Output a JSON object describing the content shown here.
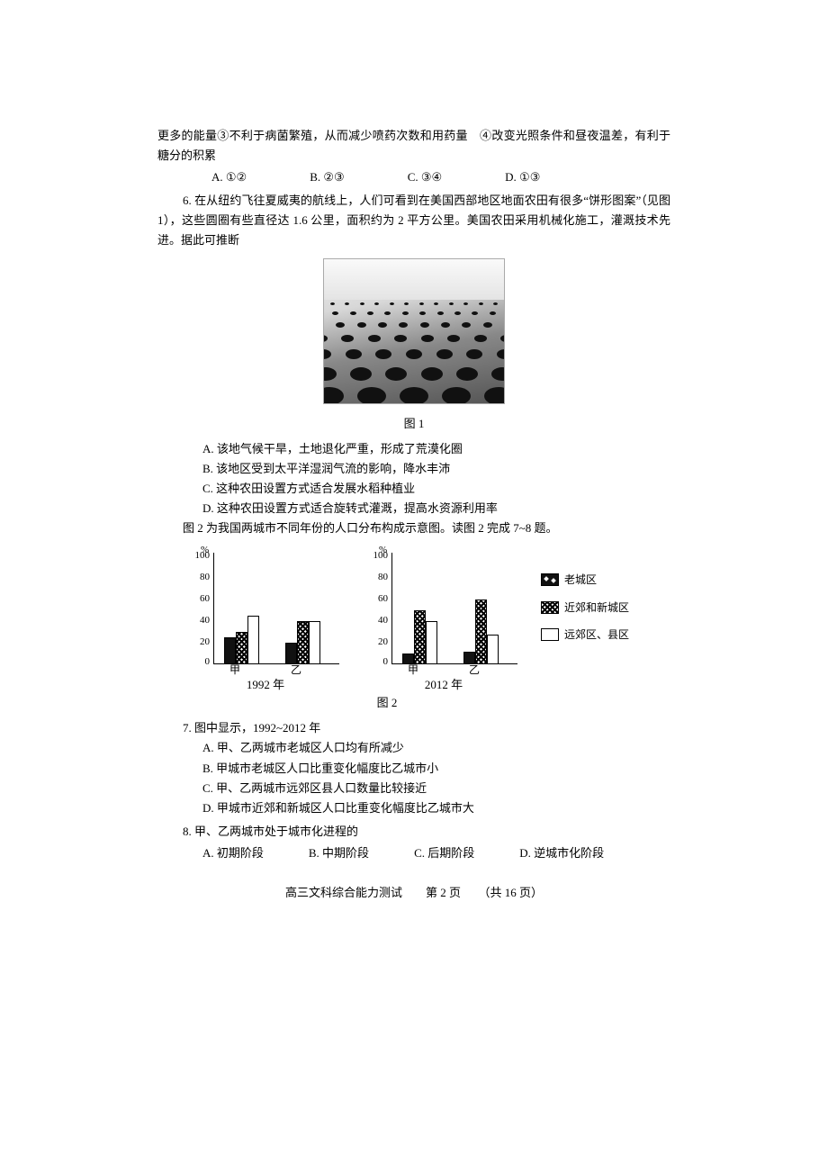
{
  "intro_cont": "更多的能量③不利于病菌繁殖，从而减少喷药次数和用药量　④改变光照条件和昼夜温差，有利于糖分的积累",
  "q5_options": {
    "A": "A. ①②",
    "B": "B. ②③",
    "C": "C. ③④",
    "D": "D. ①③"
  },
  "q6_stem": "6. 在从纽约飞往夏威夷的航线上，人们可看到在美国西部地区地面农田有很多“饼形图案”（见图 1），这些圆圈有些直径达 1.6 公里，面积约为 2 平方公里。美国农田采用机械化施工，灌溉技术先进。据此可推断",
  "fig1_caption": "图 1",
  "q6": {
    "A": "A. 该地气候干旱，土地退化严重，形成了荒漠化圈",
    "B": "B. 该地区受到太平洋湿润气流的影响，降水丰沛",
    "C": "C. 这种农田设置方式适合发展水稻种植业",
    "D": "D. 这种农田设置方式适合旋转式灌溉，提高水资源利用率"
  },
  "fig2_intro": "图 2 为我国两城市不同年份的人口分布构成示意图。读图 2 完成 7~8 题。",
  "fig2": {
    "y_label": "%",
    "ylim": [
      0,
      100
    ],
    "yticks": [
      0,
      20,
      40,
      60,
      80,
      100
    ],
    "categories": [
      "甲",
      "乙"
    ],
    "left_year": "1992 年",
    "right_year": "2012 年",
    "left": {
      "jia": {
        "old": 25,
        "mid": 30,
        "far": 45
      },
      "yi": {
        "old": 20,
        "mid": 40,
        "far": 40
      }
    },
    "right": {
      "jia": {
        "old": 10,
        "mid": 50,
        "far": 40
      },
      "yi": {
        "old": 12,
        "mid": 60,
        "far": 28
      }
    },
    "legend": {
      "old": "老城区",
      "mid": "近郊和新城区",
      "far": "远郊区、县区"
    },
    "caption": "图 2",
    "bar_colors": {
      "old": "#111111",
      "mid_pattern": "crosshatch",
      "far": "#ffffff"
    },
    "axis_color": "#000000",
    "font_size_pt": 11
  },
  "q7_stem": "7. 图中显示，1992~2012 年",
  "q7": {
    "A": "A. 甲、乙两城市老城区人口均有所减少",
    "B": "B. 甲城市老城区人口比重变化幅度比乙城市小",
    "C": "C. 甲、乙两城市远郊区县人口数量比较接近",
    "D": "D. 甲城市近郊和新城区人口比重变化幅度比乙城市大"
  },
  "q8_stem": "8. 甲、乙两城市处于城市化进程的",
  "q8_options": {
    "A": "A. 初期阶段",
    "B": "B. 中期阶段",
    "C": "C. 后期阶段",
    "D": "D. 逆城市化阶段"
  },
  "footer": "高三文科综合能力测试　　第 2 页　　（共 16 页）"
}
